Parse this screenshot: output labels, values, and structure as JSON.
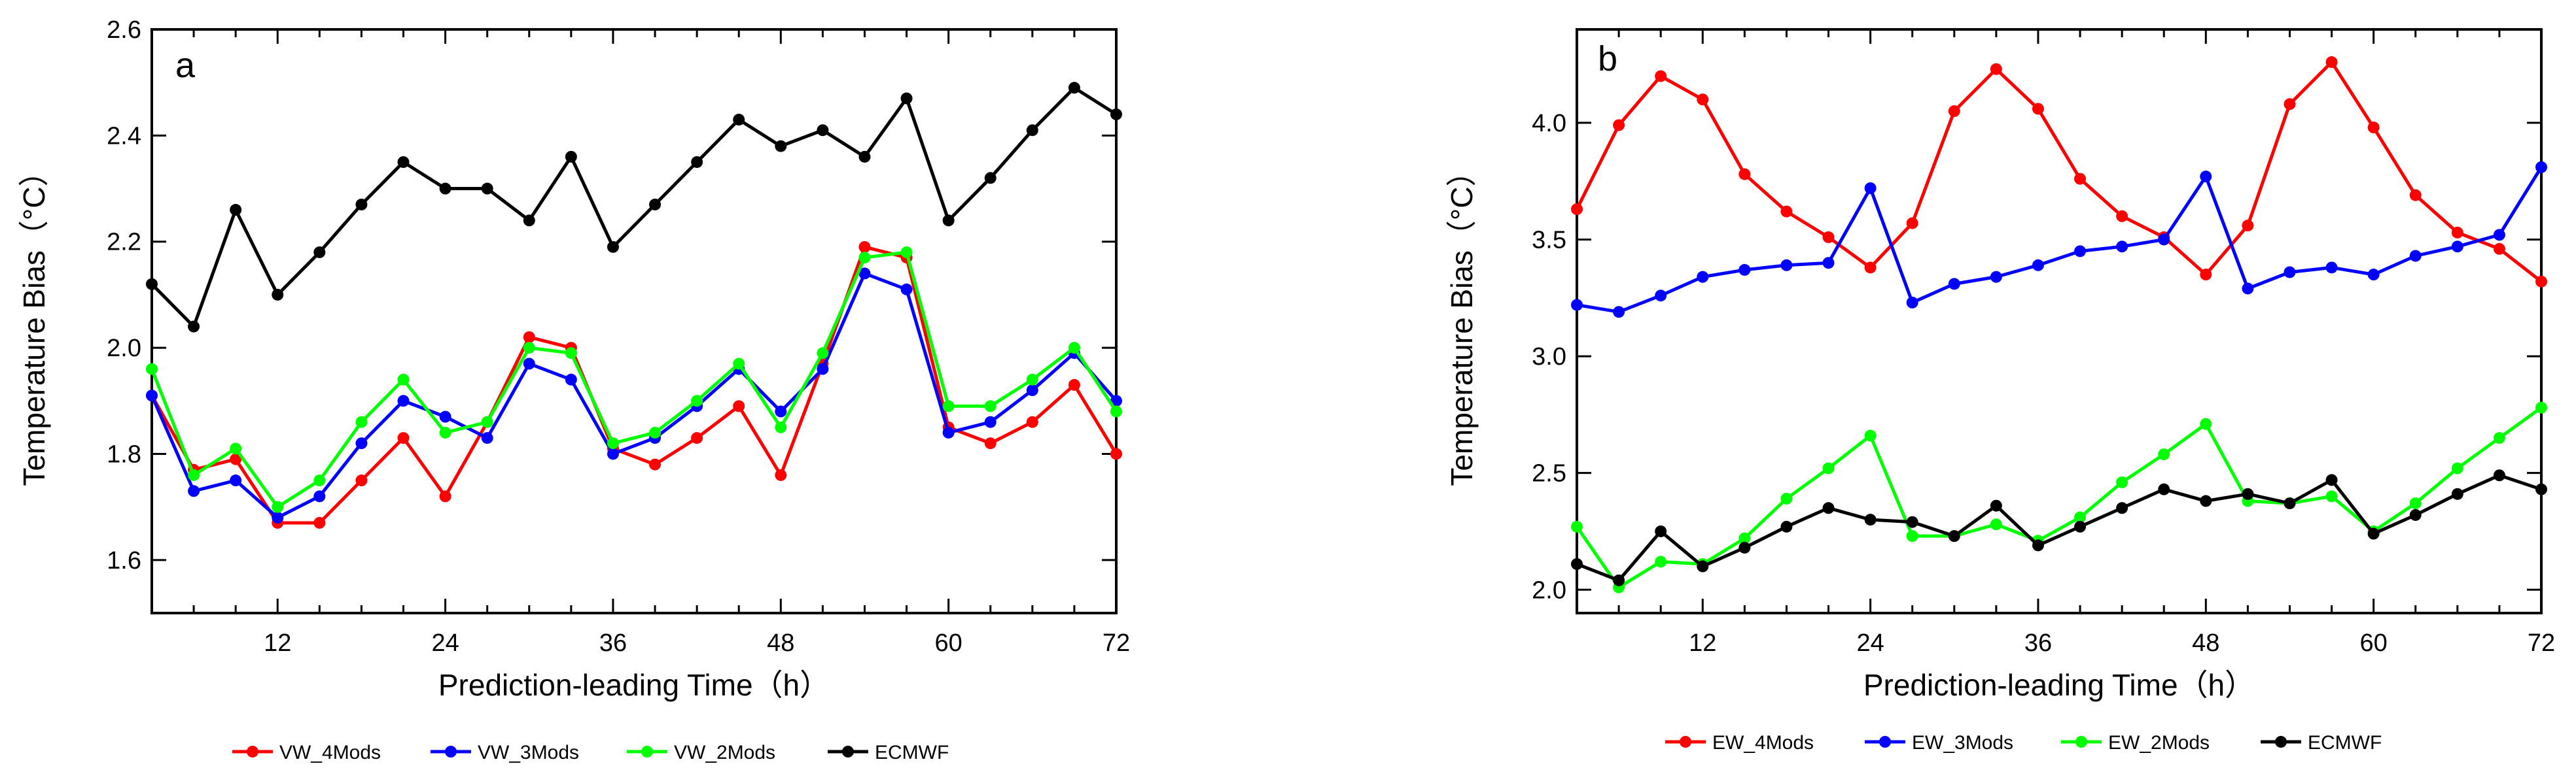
{
  "chart_data": [
    {
      "type": "line",
      "panel_label": "a",
      "xlabel": "Prediction-leading Time（h）",
      "ylabel": "Temperature Bias（°C）",
      "xlim": [
        3,
        72
      ],
      "ylim": [
        1.5,
        2.6
      ],
      "xticks": [
        12,
        24,
        36,
        48,
        60,
        72
      ],
      "yticks": [
        1.6,
        1.8,
        2.0,
        2.2,
        2.4,
        2.6
      ],
      "ytick_labels": [
        "1.6",
        "1.8",
        "2.0",
        "2.2",
        "2.4",
        "2.6"
      ],
      "x": [
        3,
        6,
        9,
        12,
        15,
        18,
        21,
        24,
        27,
        30,
        33,
        36,
        39,
        42,
        45,
        48,
        51,
        54,
        57,
        60,
        63,
        66,
        69,
        72
      ],
      "series": [
        {
          "name": "VW_4Mods",
          "color": "#ff0000",
          "values": [
            1.91,
            1.77,
            1.79,
            1.67,
            1.67,
            1.75,
            1.83,
            1.72,
            1.86,
            2.02,
            2.0,
            1.81,
            1.78,
            1.83,
            1.89,
            1.76,
            1.97,
            2.19,
            2.17,
            1.85,
            1.82,
            1.86,
            1.93,
            1.8
          ]
        },
        {
          "name": "VW_3Mods",
          "color": "#0000ff",
          "values": [
            1.91,
            1.73,
            1.75,
            1.68,
            1.72,
            1.82,
            1.9,
            1.87,
            1.83,
            1.97,
            1.94,
            1.8,
            1.83,
            1.89,
            1.96,
            1.88,
            1.96,
            2.14,
            2.11,
            1.84,
            1.86,
            1.92,
            1.99,
            1.9
          ]
        },
        {
          "name": "VW_2Mods",
          "color": "#00ff00",
          "values": [
            1.96,
            1.76,
            1.81,
            1.7,
            1.75,
            1.86,
            1.94,
            1.84,
            1.86,
            2.0,
            1.99,
            1.82,
            1.84,
            1.9,
            1.97,
            1.85,
            1.99,
            2.17,
            2.18,
            1.89,
            1.89,
            1.94,
            2.0,
            1.88
          ]
        },
        {
          "name": "ECMWF",
          "color": "#000000",
          "values": [
            2.12,
            2.04,
            2.26,
            2.1,
            2.18,
            2.27,
            2.35,
            2.3,
            2.3,
            2.24,
            2.36,
            2.19,
            2.27,
            2.35,
            2.43,
            2.38,
            2.41,
            2.36,
            2.47,
            2.24,
            2.32,
            2.41,
            2.49,
            2.44
          ]
        }
      ]
    },
    {
      "type": "line",
      "panel_label": "b",
      "xlabel": "Prediction-leading Time（h）",
      "ylabel": "Temperature Bias（°C）",
      "xlim": [
        3,
        72
      ],
      "ylim": [
        1.9,
        4.4
      ],
      "xticks": [
        12,
        24,
        36,
        48,
        60,
        72
      ],
      "yticks": [
        2.0,
        2.5,
        3.0,
        3.5,
        4.0
      ],
      "ytick_labels": [
        "2.0",
        "2.5",
        "3.0",
        "3.5",
        "4.0"
      ],
      "x": [
        3,
        6,
        9,
        12,
        15,
        18,
        21,
        24,
        27,
        30,
        33,
        36,
        39,
        42,
        45,
        48,
        51,
        54,
        57,
        60,
        63,
        66,
        69,
        72
      ],
      "series": [
        {
          "name": "EW_4Mods",
          "color": "#ff0000",
          "values": [
            3.63,
            3.99,
            4.2,
            4.1,
            3.78,
            3.62,
            3.51,
            3.38,
            3.57,
            4.05,
            4.23,
            4.06,
            3.76,
            3.6,
            3.51,
            3.35,
            3.56,
            4.08,
            4.26,
            3.98,
            3.69,
            3.53,
            3.46,
            3.32
          ]
        },
        {
          "name": "EW_3Mods",
          "color": "#0000ff",
          "values": [
            3.22,
            3.19,
            3.26,
            3.34,
            3.37,
            3.39,
            3.4,
            3.72,
            3.23,
            3.31,
            3.34,
            3.39,
            3.45,
            3.47,
            3.5,
            3.77,
            3.29,
            3.36,
            3.38,
            3.35,
            3.43,
            3.47,
            3.52,
            3.81
          ]
        },
        {
          "name": "EW_2Mods",
          "color": "#00ff00",
          "values": [
            2.27,
            2.01,
            2.12,
            2.11,
            2.22,
            2.39,
            2.52,
            2.66,
            2.23,
            2.23,
            2.28,
            2.21,
            2.31,
            2.46,
            2.58,
            2.71,
            2.38,
            2.37,
            2.4,
            2.25,
            2.37,
            2.52,
            2.65,
            2.78
          ]
        },
        {
          "name": "ECMWF",
          "color": "#000000",
          "values": [
            2.11,
            2.04,
            2.25,
            2.1,
            2.18,
            2.27,
            2.35,
            2.3,
            2.29,
            2.23,
            2.36,
            2.19,
            2.27,
            2.35,
            2.43,
            2.38,
            2.41,
            2.37,
            2.47,
            2.24,
            2.32,
            2.41,
            2.49,
            2.43
          ]
        }
      ]
    }
  ]
}
